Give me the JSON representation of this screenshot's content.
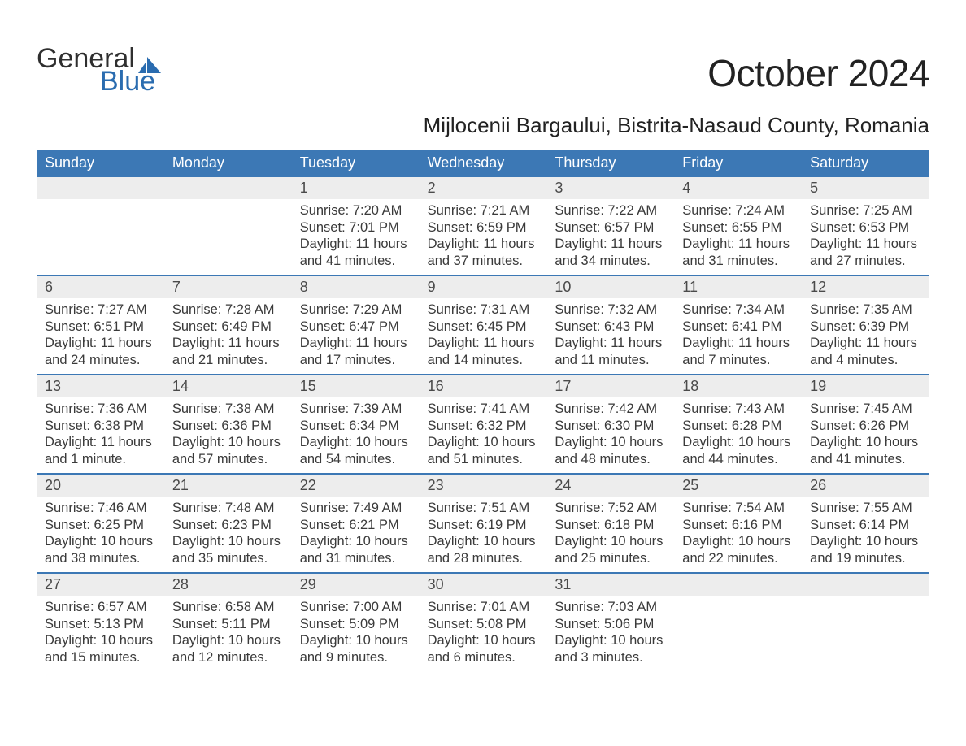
{
  "colors": {
    "header_bg": "#3c78b5",
    "header_text": "#ffffff",
    "daynum_bg": "#ededed",
    "week_divider": "#3c78b5",
    "text": "#3a3a3a",
    "logo_blue": "#2a6cb0",
    "logo_dark": "#2f2f2f"
  },
  "logo": {
    "line1": "General",
    "line2": "Blue"
  },
  "title": "October 2024",
  "location": "Mijlocenii Bargaului, Bistrita-Nasaud County, Romania",
  "day_labels": [
    "Sunday",
    "Monday",
    "Tuesday",
    "Wednesday",
    "Thursday",
    "Friday",
    "Saturday"
  ],
  "weeks": [
    [
      {
        "num": "",
        "lines": []
      },
      {
        "num": "",
        "lines": []
      },
      {
        "num": "1",
        "lines": [
          "Sunrise: 7:20 AM",
          "Sunset: 7:01 PM",
          "Daylight: 11 hours and 41 minutes."
        ]
      },
      {
        "num": "2",
        "lines": [
          "Sunrise: 7:21 AM",
          "Sunset: 6:59 PM",
          "Daylight: 11 hours and 37 minutes."
        ]
      },
      {
        "num": "3",
        "lines": [
          "Sunrise: 7:22 AM",
          "Sunset: 6:57 PM",
          "Daylight: 11 hours and 34 minutes."
        ]
      },
      {
        "num": "4",
        "lines": [
          "Sunrise: 7:24 AM",
          "Sunset: 6:55 PM",
          "Daylight: 11 hours and 31 minutes."
        ]
      },
      {
        "num": "5",
        "lines": [
          "Sunrise: 7:25 AM",
          "Sunset: 6:53 PM",
          "Daylight: 11 hours and 27 minutes."
        ]
      }
    ],
    [
      {
        "num": "6",
        "lines": [
          "Sunrise: 7:27 AM",
          "Sunset: 6:51 PM",
          "Daylight: 11 hours and 24 minutes."
        ]
      },
      {
        "num": "7",
        "lines": [
          "Sunrise: 7:28 AM",
          "Sunset: 6:49 PM",
          "Daylight: 11 hours and 21 minutes."
        ]
      },
      {
        "num": "8",
        "lines": [
          "Sunrise: 7:29 AM",
          "Sunset: 6:47 PM",
          "Daylight: 11 hours and 17 minutes."
        ]
      },
      {
        "num": "9",
        "lines": [
          "Sunrise: 7:31 AM",
          "Sunset: 6:45 PM",
          "Daylight: 11 hours and 14 minutes."
        ]
      },
      {
        "num": "10",
        "lines": [
          "Sunrise: 7:32 AM",
          "Sunset: 6:43 PM",
          "Daylight: 11 hours and 11 minutes."
        ]
      },
      {
        "num": "11",
        "lines": [
          "Sunrise: 7:34 AM",
          "Sunset: 6:41 PM",
          "Daylight: 11 hours and 7 minutes."
        ]
      },
      {
        "num": "12",
        "lines": [
          "Sunrise: 7:35 AM",
          "Sunset: 6:39 PM",
          "Daylight: 11 hours and 4 minutes."
        ]
      }
    ],
    [
      {
        "num": "13",
        "lines": [
          "Sunrise: 7:36 AM",
          "Sunset: 6:38 PM",
          "Daylight: 11 hours and 1 minute."
        ]
      },
      {
        "num": "14",
        "lines": [
          "Sunrise: 7:38 AM",
          "Sunset: 6:36 PM",
          "Daylight: 10 hours and 57 minutes."
        ]
      },
      {
        "num": "15",
        "lines": [
          "Sunrise: 7:39 AM",
          "Sunset: 6:34 PM",
          "Daylight: 10 hours and 54 minutes."
        ]
      },
      {
        "num": "16",
        "lines": [
          "Sunrise: 7:41 AM",
          "Sunset: 6:32 PM",
          "Daylight: 10 hours and 51 minutes."
        ]
      },
      {
        "num": "17",
        "lines": [
          "Sunrise: 7:42 AM",
          "Sunset: 6:30 PM",
          "Daylight: 10 hours and 48 minutes."
        ]
      },
      {
        "num": "18",
        "lines": [
          "Sunrise: 7:43 AM",
          "Sunset: 6:28 PM",
          "Daylight: 10 hours and 44 minutes."
        ]
      },
      {
        "num": "19",
        "lines": [
          "Sunrise: 7:45 AM",
          "Sunset: 6:26 PM",
          "Daylight: 10 hours and 41 minutes."
        ]
      }
    ],
    [
      {
        "num": "20",
        "lines": [
          "Sunrise: 7:46 AM",
          "Sunset: 6:25 PM",
          "Daylight: 10 hours and 38 minutes."
        ]
      },
      {
        "num": "21",
        "lines": [
          "Sunrise: 7:48 AM",
          "Sunset: 6:23 PM",
          "Daylight: 10 hours and 35 minutes."
        ]
      },
      {
        "num": "22",
        "lines": [
          "Sunrise: 7:49 AM",
          "Sunset: 6:21 PM",
          "Daylight: 10 hours and 31 minutes."
        ]
      },
      {
        "num": "23",
        "lines": [
          "Sunrise: 7:51 AM",
          "Sunset: 6:19 PM",
          "Daylight: 10 hours and 28 minutes."
        ]
      },
      {
        "num": "24",
        "lines": [
          "Sunrise: 7:52 AM",
          "Sunset: 6:18 PM",
          "Daylight: 10 hours and 25 minutes."
        ]
      },
      {
        "num": "25",
        "lines": [
          "Sunrise: 7:54 AM",
          "Sunset: 6:16 PM",
          "Daylight: 10 hours and 22 minutes."
        ]
      },
      {
        "num": "26",
        "lines": [
          "Sunrise: 7:55 AM",
          "Sunset: 6:14 PM",
          "Daylight: 10 hours and 19 minutes."
        ]
      }
    ],
    [
      {
        "num": "27",
        "lines": [
          "Sunrise: 6:57 AM",
          "Sunset: 5:13 PM",
          "Daylight: 10 hours and 15 minutes."
        ]
      },
      {
        "num": "28",
        "lines": [
          "Sunrise: 6:58 AM",
          "Sunset: 5:11 PM",
          "Daylight: 10 hours and 12 minutes."
        ]
      },
      {
        "num": "29",
        "lines": [
          "Sunrise: 7:00 AM",
          "Sunset: 5:09 PM",
          "Daylight: 10 hours and 9 minutes."
        ]
      },
      {
        "num": "30",
        "lines": [
          "Sunrise: 7:01 AM",
          "Sunset: 5:08 PM",
          "Daylight: 10 hours and 6 minutes."
        ]
      },
      {
        "num": "31",
        "lines": [
          "Sunrise: 7:03 AM",
          "Sunset: 5:06 PM",
          "Daylight: 10 hours and 3 minutes."
        ]
      },
      {
        "num": "",
        "lines": []
      },
      {
        "num": "",
        "lines": []
      }
    ]
  ]
}
